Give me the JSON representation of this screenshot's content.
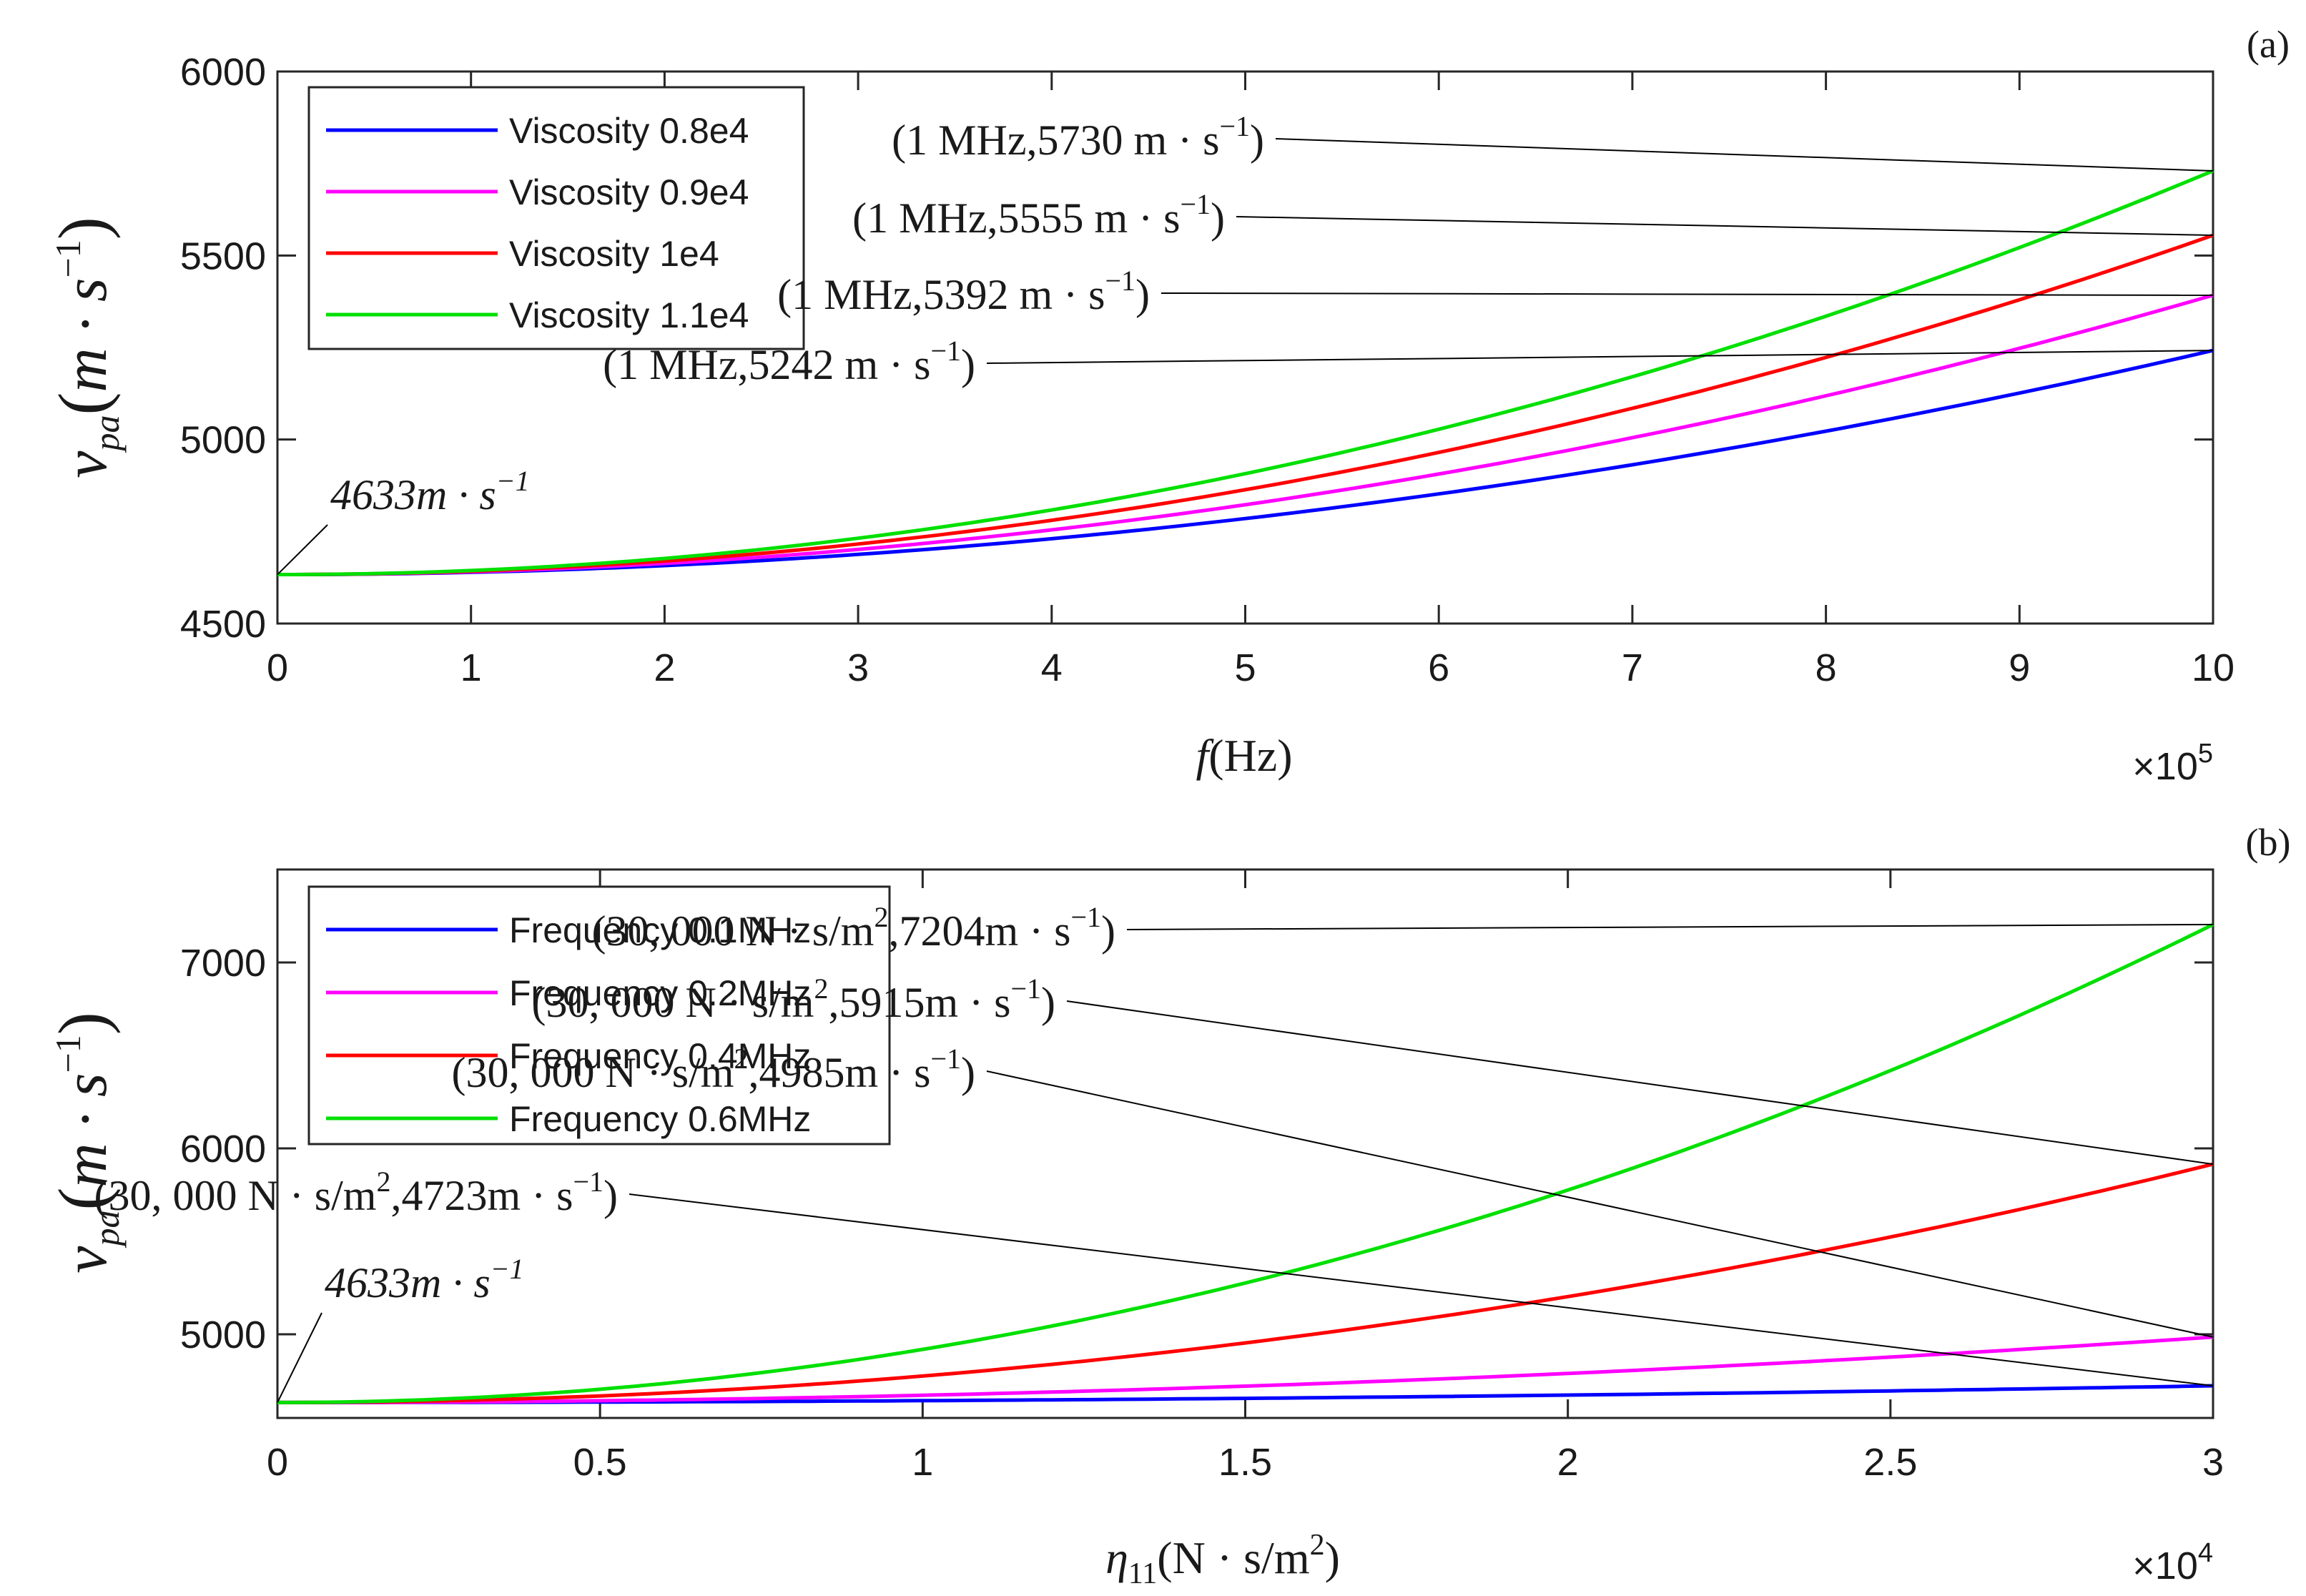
{
  "chart_data": [
    {
      "type": "line",
      "panel_label": "(a)",
      "xlabel": {
        "main": "f",
        "unit": "(Hz)"
      },
      "ylabel": {
        "main": "v",
        "sub": "pa",
        "unit": "m · s",
        "exp": "−1"
      },
      "x_multiplier": {
        "base": "×10",
        "exp": "5"
      },
      "xlim": [
        0,
        1000000
      ],
      "ylim": [
        4500,
        6000
      ],
      "xticks": [
        0,
        100000,
        200000,
        300000,
        400000,
        500000,
        600000,
        700000,
        800000,
        900000,
        1000000
      ],
      "xtick_labels": [
        "0",
        "1",
        "2",
        "3",
        "4",
        "5",
        "6",
        "7",
        "8",
        "9",
        "10"
      ],
      "yticks": [
        4500,
        5000,
        5500,
        6000
      ],
      "ytick_labels": [
        "4500",
        "5000",
        "5500",
        "6000"
      ],
      "start_value": 4633,
      "series": [
        {
          "name": "Viscosity 0.8e4",
          "end_value": 5242,
          "color": "#0000ff"
        },
        {
          "name": "Viscosity 0.9e4",
          "end_value": 5392,
          "color": "#ff00ff"
        },
        {
          "name": "Viscosity 1e4",
          "end_value": 5555,
          "color": "#ff0000"
        },
        {
          "name": "Viscosity 1.1e4",
          "end_value": 5730,
          "color": "#00e000"
        }
      ],
      "start_annotation": {
        "text": "4633m · s",
        "exp": "−1"
      },
      "annotations": [
        {
          "text": "(1 MHz,5730 m · s",
          "exp": "−1",
          "close": ")",
          "target_x": 1000000,
          "target_y": 5730
        },
        {
          "text": "(1 MHz,5555 m · s",
          "exp": "−1",
          "close": ")",
          "target_x": 1000000,
          "target_y": 5555
        },
        {
          "text": "(1 MHz,5392 m · s",
          "exp": "−1",
          "close": ")",
          "target_x": 1000000,
          "target_y": 5392
        },
        {
          "text": "(1 MHz,5242 m · s",
          "exp": "−1",
          "close": ")",
          "target_x": 1000000,
          "target_y": 5242
        }
      ]
    },
    {
      "type": "line",
      "panel_label": "(b)",
      "xlabel": {
        "main": "η",
        "sub": "11",
        "unit": "(N · s/m",
        "exp": "2",
        "close": ")"
      },
      "ylabel": {
        "main": "v",
        "sub": "pa",
        "unit": "m · s",
        "exp": "−1"
      },
      "x_multiplier": {
        "base": "×10",
        "exp": "4"
      },
      "xlim": [
        0,
        30000
      ],
      "ylim": [
        4550,
        7500
      ],
      "xticks": [
        0,
        5000,
        10000,
        15000,
        20000,
        25000,
        30000
      ],
      "xtick_labels": [
        "0",
        "0.5",
        "1",
        "1.5",
        "2",
        "2.5",
        "3"
      ],
      "yticks": [
        5000,
        6000,
        7000
      ],
      "ytick_labels": [
        "5000",
        "6000",
        "7000"
      ],
      "start_value": 4633,
      "series": [
        {
          "name": "Frequency 0.1MHz",
          "end_value": 4723,
          "color": "#0000ff"
        },
        {
          "name": "Frequency 0.2MHz",
          "end_value": 4985,
          "color": "#ff00ff"
        },
        {
          "name": "Frequency 0.4MHz",
          "end_value": 5915,
          "color": "#ff0000"
        },
        {
          "name": "Frequency 0.6MHz",
          "end_value": 7204,
          "color": "#00e000"
        }
      ],
      "start_annotation": {
        "text": "4633m · s",
        "exp": "−1"
      },
      "annotations": [
        {
          "text": "(30, 000 N · s/m",
          "exp": "2",
          "text2": ",7204m · s",
          "exp2": "−1",
          "close": ")",
          "target_x": 30000,
          "target_y": 7204
        },
        {
          "text": "(30, 000 N · s/m",
          "exp": "2",
          "text2": ",5915m · s",
          "exp2": "−1",
          "close": ")",
          "target_x": 30000,
          "target_y": 5915
        },
        {
          "text": "(30, 000 N · s/m",
          "exp": "2",
          "text2": ",4985m · s",
          "exp2": "−1",
          "close": ")",
          "target_x": 30000,
          "target_y": 4985
        },
        {
          "text": "(30, 000 N · s/m",
          "exp": "2",
          "text2": ",4723m · s",
          "exp2": "−1",
          "close": ")",
          "target_x": 30000,
          "target_y": 4723
        }
      ]
    }
  ]
}
